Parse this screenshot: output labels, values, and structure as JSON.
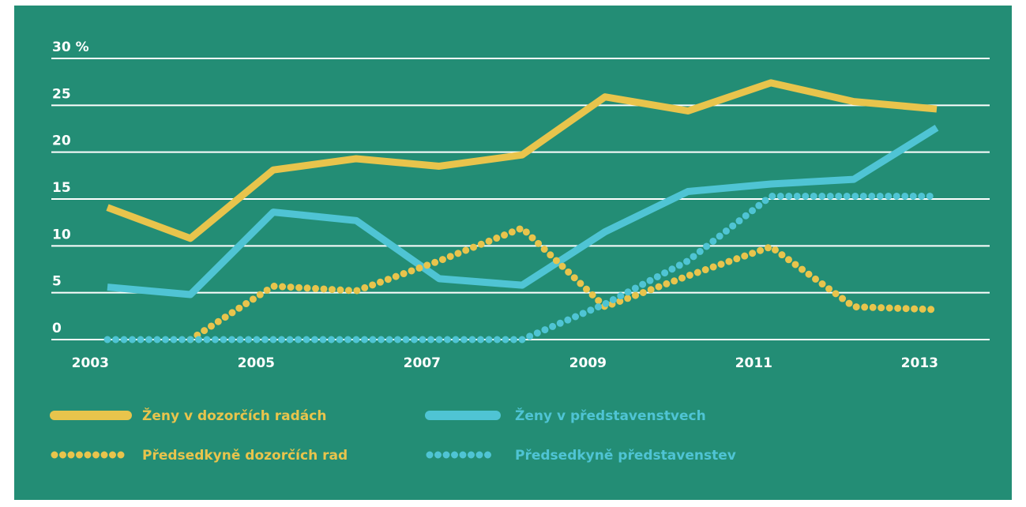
{
  "chart_data": {
    "type": "line",
    "x": [
      2003,
      2004,
      2005,
      2006,
      2007,
      2008,
      2009,
      2010,
      2011,
      2012,
      2013
    ],
    "xlim": [
      2003,
      2013
    ],
    "xticks": [
      2003,
      2005,
      2007,
      2009,
      2011,
      2013
    ],
    "ylim": [
      0,
      30
    ],
    "yticks": [
      0,
      5,
      10,
      15,
      20,
      25,
      {
        "value": 30,
        "label": "30 %"
      }
    ],
    "grid": true,
    "series": [
      {
        "name": "Ženy v dozorčích radách",
        "color": "#e8c44c",
        "style": "solid",
        "values": [
          14.1,
          10.8,
          18.1,
          19.3,
          18.5,
          19.7,
          25.9,
          24.4,
          27.4,
          25.4,
          24.6
        ]
      },
      {
        "name": "Ženy v představenstvech",
        "color": "#4fc4d4",
        "style": "solid",
        "values": [
          5.6,
          4.8,
          13.6,
          12.7,
          6.5,
          5.8,
          11.5,
          15.8,
          16.6,
          17.1,
          22.6
        ]
      },
      {
        "name": "Předsedkyně dozorčích rad",
        "color": "#e8c44c",
        "style": "dotted",
        "values": [
          null,
          0,
          5.7,
          5.2,
          8.4,
          11.9,
          3.5,
          6.8,
          9.9,
          3.5,
          3.2
        ]
      },
      {
        "name": "Předsedkyně představenstev",
        "color": "#4fc4d4",
        "style": "dotted",
        "values": [
          0,
          0,
          0,
          0,
          0,
          0,
          3.8,
          8.4,
          15.3,
          15.3,
          15.3
        ]
      }
    ]
  }
}
